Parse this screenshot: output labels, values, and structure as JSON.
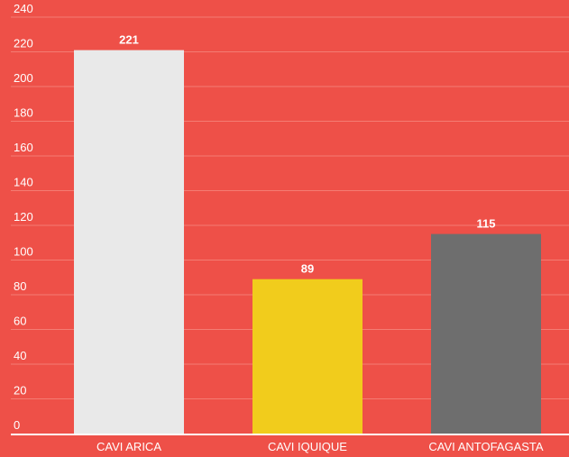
{
  "chart_data": {
    "type": "bar",
    "categories": [
      "CAVI ARICA",
      "CAVI IQUIQUE",
      "CAVI ANTOFAGASTA"
    ],
    "values": [
      221,
      89,
      115
    ],
    "value_labels": [
      "221",
      "89",
      "115"
    ],
    "ylim": [
      0,
      240
    ],
    "yticks": [
      0,
      20,
      40,
      60,
      80,
      100,
      120,
      140,
      160,
      180,
      200,
      220,
      240
    ],
    "grid": true,
    "title": "",
    "xlabel": "",
    "ylabel": "",
    "colors": {
      "background": "#ee5048",
      "bars": [
        "#e9e9e9",
        "#f1cc1c",
        "#6e6e6e"
      ],
      "grid": "#f47c73",
      "axis": "#ffffff",
      "text": "#ffffff"
    }
  }
}
